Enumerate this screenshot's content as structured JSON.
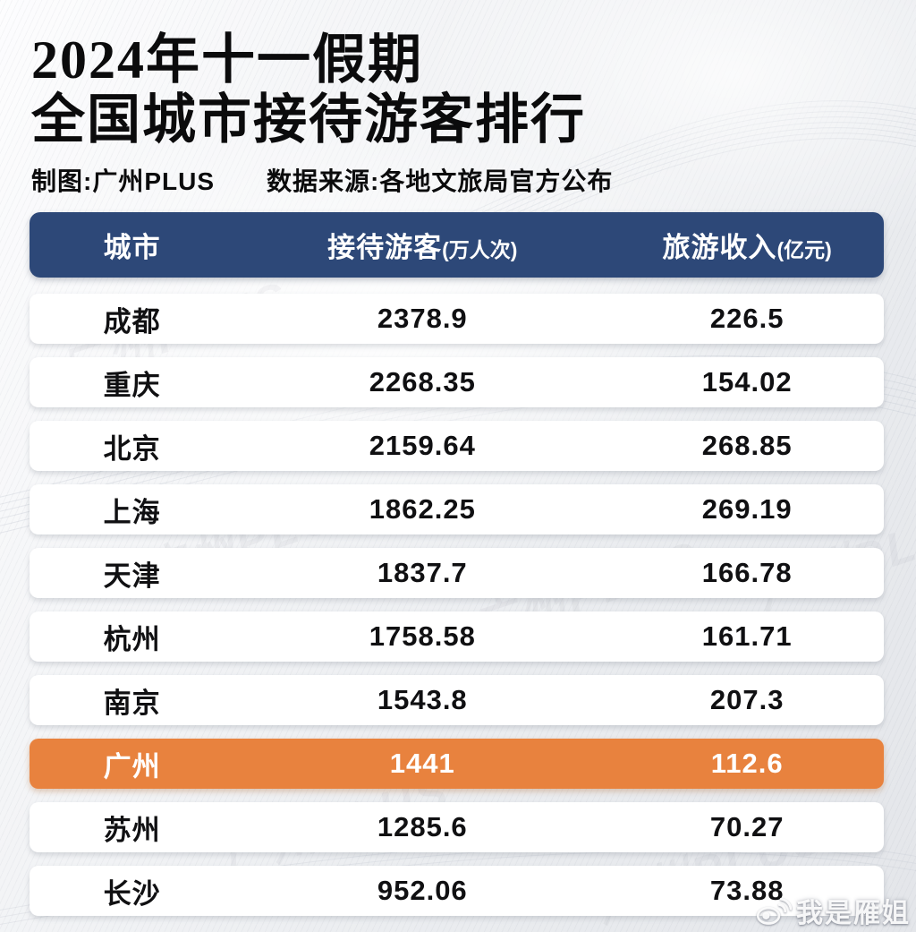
{
  "title": {
    "line1": "2024年十一假期",
    "line2": "全国城市接待游客排行"
  },
  "subtitle": {
    "credit": "制图:广州PLUS",
    "source": "数据来源:各地文旅局官方公布"
  },
  "table": {
    "headers": [
      {
        "label": "城市",
        "unit": ""
      },
      {
        "label": "接待游客",
        "unit": "(万人次)"
      },
      {
        "label": "旅游收入",
        "unit": "(亿元)"
      }
    ],
    "rows": [
      {
        "city": "成都",
        "visitors": "2378.9",
        "revenue": "226.5",
        "highlight": false
      },
      {
        "city": "重庆",
        "visitors": "2268.35",
        "revenue": "154.02",
        "highlight": false
      },
      {
        "city": "北京",
        "visitors": "2159.64",
        "revenue": "268.85",
        "highlight": false
      },
      {
        "city": "上海",
        "visitors": "1862.25",
        "revenue": "269.19",
        "highlight": false
      },
      {
        "city": "天津",
        "visitors": "1837.7",
        "revenue": "166.78",
        "highlight": false
      },
      {
        "city": "杭州",
        "visitors": "1758.58",
        "revenue": "161.71",
        "highlight": false
      },
      {
        "city": "南京",
        "visitors": "1543.8",
        "revenue": "207.3",
        "highlight": false
      },
      {
        "city": "广州",
        "visitors": "1441",
        "revenue": "112.6",
        "highlight": true
      },
      {
        "city": "苏州",
        "visitors": "1285.6",
        "revenue": "70.27",
        "highlight": false
      },
      {
        "city": "长沙",
        "visitors": "952.06",
        "revenue": "73.88",
        "highlight": false
      }
    ]
  },
  "watermark": {
    "icon": "weibo-icon",
    "text": "我是雁姐"
  },
  "background_watermark": "广州PLUS",
  "colors": {
    "header_bg": "#2d4878",
    "header_text": "#ffffff",
    "highlight_bg": "#e8823e",
    "highlight_text": "#ffffff",
    "row_bg": "#ffffff",
    "body_text": "#101012"
  },
  "chart_data": {
    "type": "table",
    "title": "2024年十一假期 全国城市接待游客排行",
    "columns": [
      "城市",
      "接待游客(万人次)",
      "旅游收入(亿元)"
    ],
    "categories": [
      "成都",
      "重庆",
      "北京",
      "上海",
      "天津",
      "杭州",
      "南京",
      "广州",
      "苏州",
      "长沙"
    ],
    "series": [
      {
        "name": "接待游客(万人次)",
        "values": [
          2378.9,
          2268.35,
          2159.64,
          1862.25,
          1837.7,
          1758.58,
          1543.8,
          1441,
          1285.6,
          952.06
        ]
      },
      {
        "name": "旅游收入(亿元)",
        "values": [
          226.5,
          154.02,
          268.85,
          269.19,
          166.78,
          161.71,
          207.3,
          112.6,
          70.27,
          73.88
        ]
      }
    ],
    "highlighted_row": "广州",
    "source": "各地文旅局官方公布",
    "credit": "广州PLUS"
  }
}
